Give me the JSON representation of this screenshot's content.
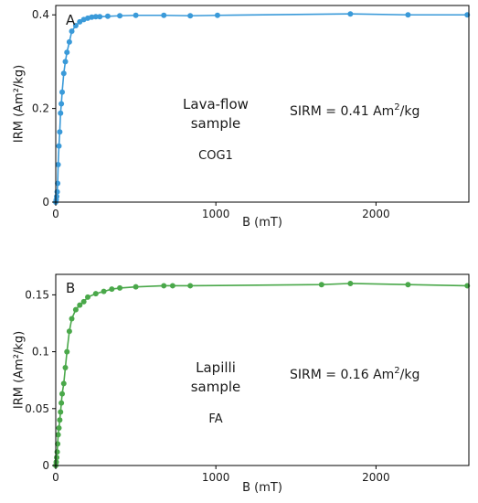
{
  "chart_data": [
    {
      "type": "line",
      "panel_label": "A",
      "color": "#3a9ad9",
      "xlabel": "B (mT)",
      "ylabel": "IRM (Am²/kg)",
      "xlim": [
        0,
        2580
      ],
      "ylim": [
        0,
        0.42
      ],
      "x_ticks": [
        0,
        1000,
        2000
      ],
      "y_ticks": [
        0,
        0.2,
        0.4
      ],
      "x_tick_labels": [
        "0",
        "1000",
        "2000"
      ],
      "y_tick_labels": [
        "0",
        "0.2",
        "0.4"
      ],
      "annotations": {
        "sample_line1": "Lava-flow",
        "sample_line2": "sample",
        "sample_id": "COG1",
        "sirm_prefix": "SIRM = 0.41 Am",
        "sirm_sup": "2",
        "sirm_suffix": "/kg"
      },
      "series": [
        {
          "x": [
            0,
            3,
            6,
            9,
            12,
            15,
            20,
            25,
            30,
            35,
            40,
            50,
            60,
            70,
            85,
            100,
            125,
            150,
            175,
            200,
            225,
            250,
            275,
            325,
            400,
            500,
            675,
            840,
            1010,
            1840,
            2200,
            2570
          ],
          "y": [
            0.0,
            0.005,
            0.012,
            0.022,
            0.04,
            0.08,
            0.12,
            0.15,
            0.19,
            0.21,
            0.235,
            0.275,
            0.3,
            0.32,
            0.342,
            0.365,
            0.377,
            0.385,
            0.39,
            0.393,
            0.395,
            0.396,
            0.396,
            0.397,
            0.398,
            0.399,
            0.399,
            0.398,
            0.399,
            0.402,
            0.4,
            0.4
          ]
        }
      ]
    },
    {
      "type": "line",
      "panel_label": "B",
      "color": "#4aa84a",
      "xlabel": "B (mT)",
      "ylabel": "IRM (Am²/kg)",
      "xlim": [
        0,
        2580
      ],
      "ylim": [
        0,
        0.168
      ],
      "x_ticks": [
        0,
        1000,
        2000
      ],
      "y_ticks": [
        0,
        0.05,
        0.1,
        0.15
      ],
      "x_tick_labels": [
        "0",
        "1000",
        "2000"
      ],
      "y_tick_labels": [
        "0",
        "0.05",
        "0.1",
        "0.15"
      ],
      "annotations": {
        "sample_line1": "Lapilli",
        "sample_line2": "sample",
        "sample_id": "FA",
        "sirm_prefix": "SIRM = 0.16 Am",
        "sirm_sup": "2",
        "sirm_suffix": "/kg"
      },
      "series": [
        {
          "x": [
            0,
            3,
            6,
            9,
            12,
            15,
            20,
            25,
            30,
            35,
            40,
            50,
            60,
            70,
            85,
            100,
            125,
            150,
            175,
            200,
            250,
            300,
            350,
            400,
            500,
            675,
            730,
            840,
            1660,
            1840,
            2200,
            2570
          ],
          "y": [
            0.0,
            0.003,
            0.007,
            0.012,
            0.019,
            0.027,
            0.033,
            0.04,
            0.047,
            0.055,
            0.063,
            0.072,
            0.086,
            0.1,
            0.118,
            0.129,
            0.137,
            0.141,
            0.144,
            0.148,
            0.151,
            0.153,
            0.155,
            0.156,
            0.157,
            0.158,
            0.158,
            0.158,
            0.159,
            0.16,
            0.159,
            0.158
          ]
        }
      ]
    }
  ]
}
